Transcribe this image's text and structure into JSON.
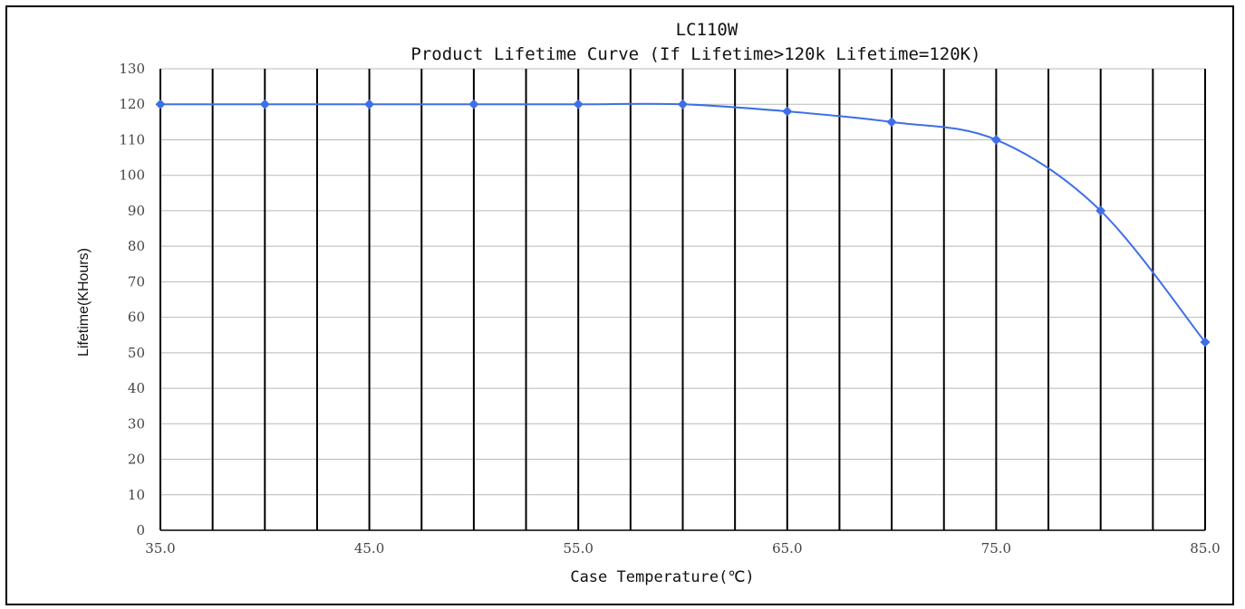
{
  "chart_data": {
    "type": "line",
    "title": "LC110W",
    "subtitle": "Product Lifetime Curve (If Lifetime>120k Lifetime=120K)",
    "xlabel": "Case Temperature(℃)",
    "ylabel": "Lifetime(KHours)",
    "xlim": [
      35,
      85
    ],
    "ylim": [
      0,
      130
    ],
    "x_ticks": [
      35,
      45,
      55,
      65,
      75,
      85
    ],
    "x_tick_labels": [
      "35.0",
      "45.0",
      "55.0",
      "65.0",
      "75.0",
      "85.0"
    ],
    "y_ticks": [
      0,
      10,
      20,
      30,
      40,
      50,
      60,
      70,
      80,
      90,
      100,
      110,
      120,
      130
    ],
    "y_tick_labels": [
      "0",
      "10",
      "20",
      "30",
      "40",
      "50",
      "60",
      "70",
      "80",
      "90",
      "100",
      "110",
      "120",
      "130"
    ],
    "grid": true,
    "legend": "none",
    "series": [
      {
        "x": [
          35,
          40,
          45,
          50,
          55,
          60,
          65,
          70,
          75,
          80,
          85
        ],
        "values": [
          120,
          120,
          120,
          120,
          120,
          120,
          118,
          115,
          110,
          90,
          53
        ],
        "color": "#3f6fe6",
        "marker": "diamond",
        "smooth": true
      }
    ],
    "colors": {
      "gridline_horizontal": "#b8b8b8",
      "gridline_vertical": "#000000",
      "axis": "#000000"
    }
  }
}
